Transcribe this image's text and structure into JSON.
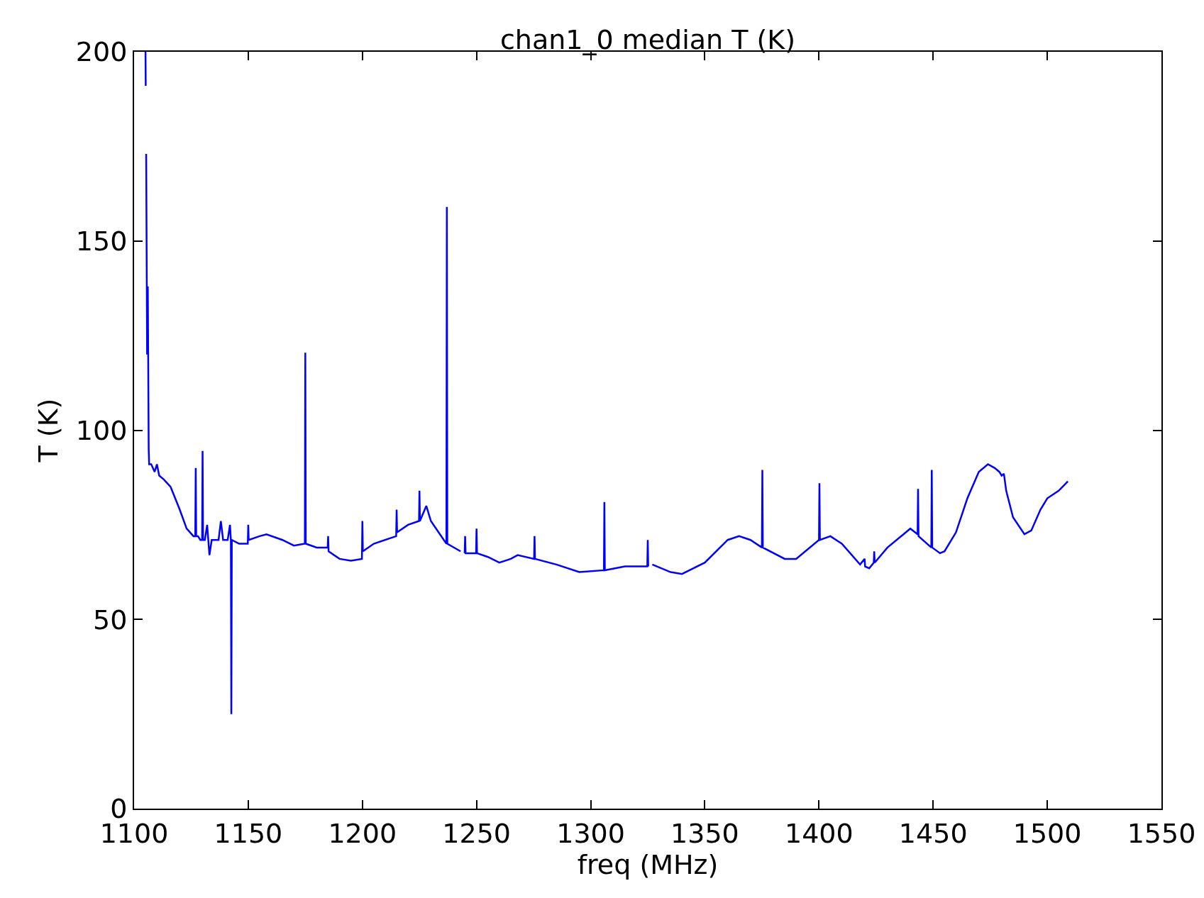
{
  "chart_data": {
    "type": "line",
    "title": "chan1_0 median T (K)",
    "xlabel": "freq (MHz)",
    "ylabel": "T (K)",
    "xlim": [
      1100,
      1550
    ],
    "xticks": [
      1100,
      1150,
      1200,
      1250,
      1300,
      1350,
      1400,
      1450,
      1500,
      1550
    ],
    "ylim": [
      0,
      200
    ],
    "yticks": [
      0,
      50,
      100,
      150,
      200
    ],
    "marker": "none",
    "line_style": "solid",
    "x": [
      1105,
      1105.1,
      1105.2,
      1105.3,
      1105.7,
      1106,
      1106.4,
      1106.6,
      1107.5,
      1109,
      1110,
      1111,
      1113,
      1116,
      1120,
      1123,
      1126,
      1126.8,
      1127,
      1127.2,
      1128,
      1129,
      1129.8,
      1130,
      1130.2,
      1131,
      1132,
      1133,
      1134,
      1137,
      1138,
      1139,
      1141,
      1142,
      1142.4,
      1142.6,
      1142.8,
      1146,
      1149.8,
      1150,
      1150.2,
      1155,
      1158,
      1165,
      1170,
      1174.8,
      1175,
      1175.2,
      1180,
      1184.8,
      1185,
      1185.2,
      1190,
      1195,
      1199.8,
      1200,
      1200.2,
      1205,
      1214.8,
      1215,
      1215.2,
      1220,
      1224.8,
      1225,
      1225.2,
      1228,
      1230,
      1236.8,
      1237,
      1237.2,
      1243,
      1244,
      1244.8,
      1245,
      1245.2,
      1249.8,
      1250,
      1250.2,
      1255,
      1260,
      1265,
      1268,
      1275.2,
      1275.4,
      1275.6,
      1285,
      1295,
      1305.8,
      1306,
      1306.2,
      1315,
      1324.8,
      1325,
      1325.2,
      1326,
      1327,
      1335,
      1340,
      1350,
      1360,
      1365,
      1370,
      1375,
      1375.2,
      1375.4,
      1385,
      1390,
      1400,
      1400.2,
      1400.4,
      1405,
      1410,
      1418,
      1420,
      1420.2,
      1422,
      1424,
      1424.2,
      1424.4,
      1430,
      1440,
      1443.2,
      1443.4,
      1443.6,
      1449.2,
      1449.4,
      1449.6,
      1453,
      1455,
      1460,
      1465,
      1470,
      1474,
      1477,
      1479,
      1480,
      1481,
      1482,
      1485,
      1490,
      1493,
      1497,
      1500,
      1505,
      1509
    ],
    "values": [
      200,
      191,
      null,
      173,
      120,
      138,
      95,
      91,
      91,
      89,
      91,
      88,
      87,
      85,
      79,
      74,
      72,
      72,
      90,
      72,
      72,
      71,
      71,
      94.5,
      71,
      71,
      75,
      67,
      71,
      71,
      76,
      71,
      71,
      75,
      71,
      25,
      71,
      70,
      70,
      75,
      71,
      72,
      72.5,
      71,
      69.5,
      70,
      120.5,
      70,
      69,
      69,
      72,
      68,
      66,
      65.5,
      66,
      76,
      68,
      70,
      72,
      79,
      73,
      75,
      76,
      84,
      76,
      80,
      76,
      70,
      159,
      70,
      68,
      null,
      67.5,
      72,
      67.5,
      67.5,
      74,
      67.5,
      66.5,
      65,
      66,
      67,
      66,
      72,
      66,
      64.5,
      62.5,
      63,
      81,
      63,
      64,
      64,
      71,
      64,
      null,
      64.5,
      62.5,
      62,
      65,
      71,
      72,
      71,
      69,
      89.5,
      69,
      66,
      66,
      71,
      86,
      71,
      72,
      70,
      64.5,
      66,
      64,
      63.5,
      65,
      68,
      65,
      69,
      74,
      72.5,
      84.5,
      72,
      69,
      89.5,
      69,
      67.5,
      68,
      73,
      82,
      89,
      91,
      90,
      89,
      88,
      88.5,
      84,
      77,
      72.5,
      73.5,
      79,
      82,
      84,
      86.5
    ],
    "color": "#0000ff"
  }
}
